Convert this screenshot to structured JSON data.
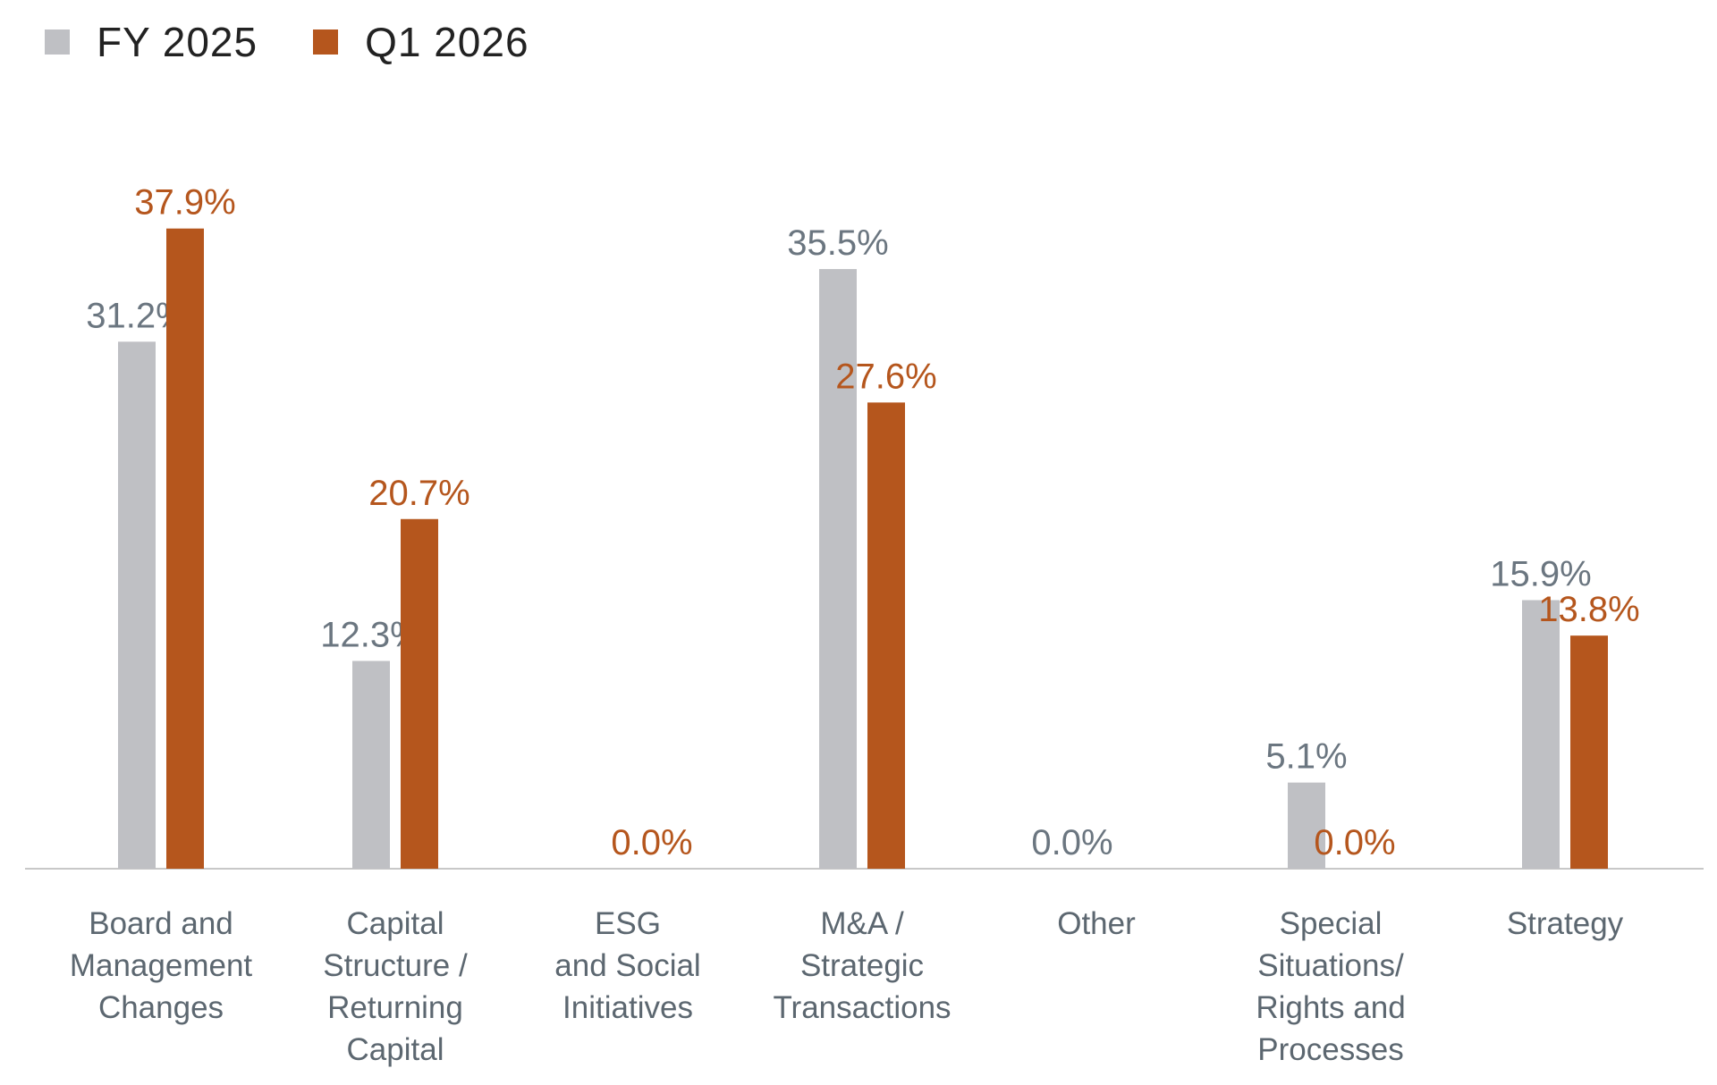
{
  "colors": {
    "fy2025": "#bfc0c4",
    "q12026": "#b5561d",
    "fy2025_label": "#6b7680",
    "q12026_label": "#b5561d",
    "axis": "#c8c8c8"
  },
  "legend": [
    {
      "label": "FY 2025",
      "color": "#bfc0c4"
    },
    {
      "label": "Q1 2026",
      "color": "#b5561d"
    }
  ],
  "chart_data": {
    "type": "bar",
    "categories": [
      [
        "Board and",
        "Management",
        "Changes"
      ],
      [
        "Capital",
        "Structure /",
        "Returning",
        "Capital"
      ],
      [
        "ESG",
        "and Social",
        "Initiatives"
      ],
      [
        "M&A /",
        "Strategic",
        "Transactions"
      ],
      [
        "Other"
      ],
      [
        "Special",
        "Situations/",
        "Rights and",
        "Processes"
      ],
      [
        "Strategy"
      ]
    ],
    "series": [
      {
        "name": "FY 2025",
        "values": [
          31.2,
          12.3,
          0.0,
          35.5,
          0.0,
          5.1,
          15.9
        ],
        "labels": [
          "31.2%",
          "12.3%",
          "",
          "35.5%",
          "0.0%",
          "5.1%",
          "15.9%"
        ]
      },
      {
        "name": "Q1 2026",
        "values": [
          37.9,
          20.7,
          0.0,
          27.6,
          0.0,
          0.0,
          13.8
        ],
        "labels": [
          "37.9%",
          "20.7%",
          "0.0%",
          "27.6%",
          "",
          "0.0%",
          "13.8%"
        ]
      }
    ],
    "ylim": [
      0,
      40
    ],
    "title": "",
    "xlabel": "",
    "ylabel": "",
    "grid": false,
    "legend_position": "top-left"
  }
}
